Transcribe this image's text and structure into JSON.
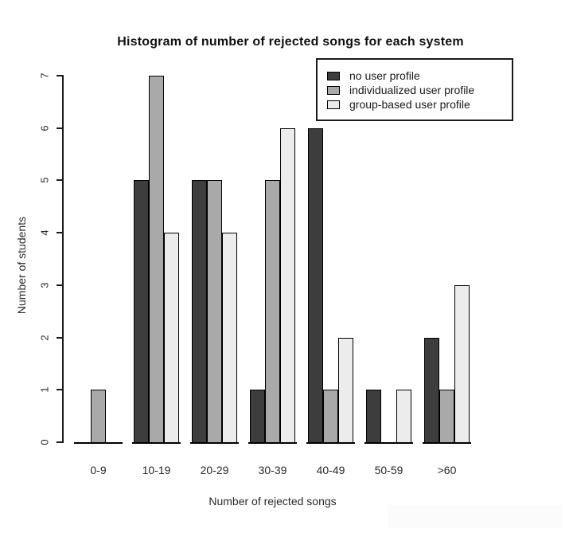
{
  "chart_data": {
    "type": "bar",
    "grouped": true,
    "title": "Histogram of number of rejected songs for each system",
    "xlabel": "Number of rejected songs",
    "ylabel": "Number of students",
    "categories": [
      "0-9",
      "10-19",
      "20-29",
      "30-39",
      "40-49",
      "50-59",
      ">60"
    ],
    "series": [
      {
        "name": "no user profile",
        "color": "#3d3d3d",
        "values": [
          0,
          5,
          5,
          1,
          6,
          1,
          2
        ]
      },
      {
        "name": "individualized user profile",
        "color": "#a9a9a9",
        "values": [
          1,
          7,
          5,
          5,
          1,
          0,
          1
        ]
      },
      {
        "name": "group-based user profile",
        "color": "#ececec",
        "values": [
          0,
          4,
          4,
          6,
          2,
          1,
          3
        ]
      }
    ],
    "ylim": [
      0,
      7
    ],
    "yticks": [
      0,
      1,
      2,
      3,
      4,
      5,
      6,
      7
    ],
    "legend_position": "top-right",
    "grid": false,
    "bar_border_color": "#000000",
    "axis_color": "#1a1a1a",
    "background": "#ffffff"
  }
}
